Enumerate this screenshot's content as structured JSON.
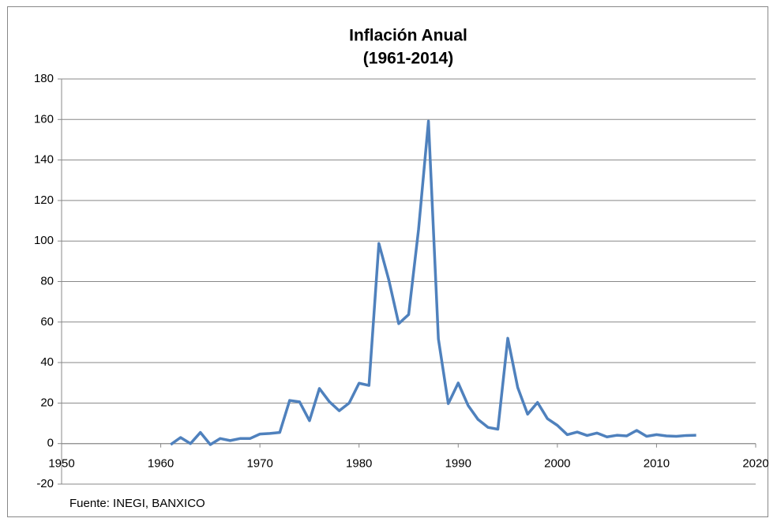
{
  "chart_data": {
    "type": "line",
    "title": "Inflación Anual",
    "subtitle": "(1961-2014)",
    "note": "Fuente: INEGI, BANXICO",
    "x": [
      1961,
      1962,
      1963,
      1964,
      1965,
      1966,
      1967,
      1968,
      1969,
      1970,
      1971,
      1972,
      1973,
      1974,
      1975,
      1976,
      1977,
      1978,
      1979,
      1980,
      1981,
      1982,
      1983,
      1984,
      1985,
      1986,
      1987,
      1988,
      1989,
      1990,
      1991,
      1992,
      1993,
      1994,
      1995,
      1996,
      1997,
      1998,
      1999,
      2000,
      2001,
      2002,
      2003,
      2004,
      2005,
      2006,
      2007,
      2008,
      2009,
      2010,
      2011,
      2012,
      2013,
      2014
    ],
    "series": [
      {
        "name": "Inflación",
        "color": "#4f81bd",
        "values": [
          -0.5,
          3,
          0,
          5.5,
          -0.5,
          2.5,
          1.5,
          2.5,
          2.5,
          4.7,
          5,
          5.5,
          21.3,
          20.6,
          11.3,
          27.2,
          20.7,
          16.2,
          20,
          29.8,
          28.7,
          98.8,
          80.8,
          59.2,
          63.7,
          105.7,
          159.2,
          51.7,
          19.7,
          29.9,
          18.8,
          11.9,
          8,
          7.1,
          52,
          27.7,
          14.5,
          20.3,
          12.3,
          9,
          4.4,
          5.7,
          4,
          5.2,
          3.3,
          4.1,
          3.8,
          6.5,
          3.6,
          4.4,
          3.8,
          3.6,
          4,
          4.1
        ]
      }
    ],
    "xlim": [
      1950,
      2020
    ],
    "xticks": [
      1950,
      1960,
      1970,
      1980,
      1990,
      2000,
      2010,
      2020
    ],
    "ylim": [
      -20,
      180
    ],
    "yticks": [
      -20,
      0,
      20,
      40,
      60,
      80,
      100,
      120,
      140,
      160,
      180
    ],
    "grid": true
  }
}
